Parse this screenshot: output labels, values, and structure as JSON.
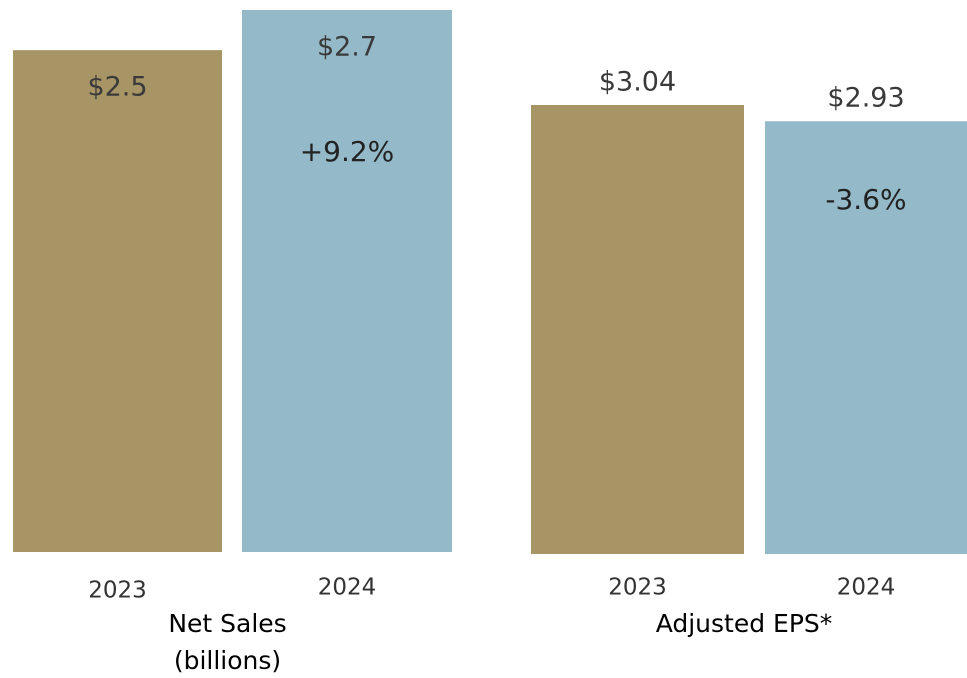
{
  "chart_data": [
    {
      "type": "bar",
      "title": "Net Sales",
      "subtitle": "(billions)",
      "categories": [
        "2023",
        "2024"
      ],
      "values": [
        2.5,
        2.7
      ],
      "value_labels": [
        "$2.5",
        "$2.7"
      ],
      "colors": [
        "#a89566",
        "#94b9c8"
      ],
      "annotation": "+9.2%"
    },
    {
      "type": "bar",
      "title": "Adjusted EPS*",
      "categories": [
        "2023",
        "2024"
      ],
      "values": [
        3.04,
        2.93
      ],
      "value_labels": [
        "$3.04",
        "$2.93"
      ],
      "colors": [
        "#a89566",
        "#94b9c8"
      ],
      "annotation": "-3.6%"
    }
  ]
}
